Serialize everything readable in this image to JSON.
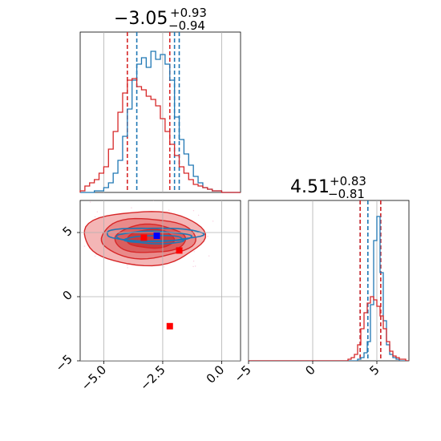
{
  "chart_data": {
    "type": "corner",
    "params": [
      "x",
      "y"
    ],
    "titles": [
      {
        "median": "−3.05",
        "plus": "+0.93",
        "minus": "−0.94"
      },
      {
        "median": "4.51",
        "plus": "+0.83",
        "minus": "−0.81"
      }
    ],
    "panels": {
      "hist_x": {
        "xlim": [
          -6.0,
          0.8
        ],
        "bin_edges": [
          -6.0,
          -5.8,
          -5.6,
          -5.4,
          -5.2,
          -5.0,
          -4.8,
          -4.6,
          -4.4,
          -4.2,
          -4.0,
          -3.8,
          -3.6,
          -3.4,
          -3.2,
          -3.0,
          -2.8,
          -2.6,
          -2.4,
          -2.2,
          -2.0,
          -1.8,
          -1.6,
          -1.4,
          -1.2,
          -1.0,
          -0.8,
          -0.6,
          -0.4,
          -0.2,
          0.0,
          0.2,
          0.4,
          0.6,
          0.8
        ],
        "series": [
          {
            "color": "#1f77b4",
            "values": [
              0,
              0,
              0,
              0.01,
              0.01,
              0.03,
              0.06,
              0.12,
              0.2,
              0.35,
              0.52,
              0.7,
              0.8,
              0.84,
              0.78,
              0.88,
              0.83,
              0.86,
              0.8,
              0.7,
              0.47,
              0.33,
              0.24,
              0.17,
              0.1,
              0.06,
              0.03,
              0.02,
              0.01,
              0.01,
              0,
              0,
              0,
              0
            ]
          },
          {
            "color": "#d62728",
            "values": [
              0.01,
              0.04,
              0.06,
              0.08,
              0.12,
              0.16,
              0.27,
              0.38,
              0.5,
              0.62,
              0.7,
              0.71,
              0.66,
              0.64,
              0.6,
              0.58,
              0.54,
              0.46,
              0.38,
              0.3,
              0.23,
              0.16,
              0.12,
              0.08,
              0.05,
              0.04,
              0.03,
              0.02,
              0.01,
              0.01,
              0,
              0,
              0,
              0
            ]
          }
        ],
        "quantiles": [
          {
            "color": "#1f77b4",
            "values": [
              -3.6,
              -2.0,
              -1.8
            ]
          },
          {
            "color": "#d62728",
            "values": [
              -4.0,
              -2.2
            ]
          }
        ]
      },
      "hist_y": {
        "xlim": [
          -5.0,
          7.5
        ],
        "bin_edges": [
          -5.0,
          -4.75,
          -4.5,
          -4.25,
          -4.0,
          -3.75,
          -3.5,
          -3.25,
          -3.0,
          -2.75,
          -2.5,
          -2.25,
          -2.0,
          -1.75,
          -1.5,
          -1.25,
          -1.0,
          -0.75,
          -0.5,
          -0.25,
          0.0,
          0.25,
          0.5,
          0.75,
          1.0,
          1.25,
          1.5,
          1.75,
          2.0,
          2.25,
          2.5,
          2.75,
          3.0,
          3.25,
          3.5,
          3.75,
          4.0,
          4.25,
          4.5,
          4.75,
          5.0,
          5.25,
          5.5,
          5.75,
          6.0,
          6.25,
          6.5,
          6.75,
          7.0,
          7.25,
          7.5
        ],
        "series": [
          {
            "color": "#1f77b4",
            "values": [
              0,
              0,
              0,
              0,
              0,
              0,
              0,
              0,
              0,
              0,
              0,
              0,
              0,
              0,
              0,
              0,
              0,
              0,
              0,
              0,
              0,
              0,
              0,
              0,
              0,
              0,
              0,
              0,
              0,
              0,
              0,
              0,
              0,
              0,
              0.01,
              0.02,
              0.05,
              0.12,
              0.35,
              0.75,
              0.9,
              0.55,
              0.25,
              0.1,
              0.04,
              0.02,
              0.01,
              0,
              0,
              0
            ]
          },
          {
            "color": "#d62728",
            "values": [
              0,
              0,
              0,
              0,
              0,
              0,
              0,
              0,
              0,
              0,
              0,
              0,
              0,
              0,
              0,
              0,
              0,
              0,
              0,
              0,
              0,
              0,
              0,
              0,
              0,
              0,
              0,
              0,
              0,
              0,
              0,
              0.01,
              0.02,
              0.04,
              0.1,
              0.2,
              0.3,
              0.36,
              0.4,
              0.38,
              0.34,
              0.28,
              0.2,
              0.12,
              0.06,
              0.03,
              0.02,
              0.01,
              0.01,
              0
            ]
          }
        ],
        "quantiles": [
          {
            "color": "#1f77b4",
            "values": [
              3.7,
              4.3,
              5.3
            ]
          },
          {
            "color": "#d62728",
            "values": [
              3.7,
              5.3
            ]
          }
        ]
      },
      "joint": {
        "xlim": [
          -6.0,
          0.8
        ],
        "ylim": [
          -5.0,
          7.5
        ],
        "red_levels": [
          {
            "cx": -3.3,
            "cy": 4.6,
            "rx": 2.55,
            "ry": 2.1,
            "fill": "#f4b6b6"
          },
          {
            "cx": -3.15,
            "cy": 4.55,
            "rx": 2.0,
            "ry": 1.55,
            "fill": "#e98a8a"
          },
          {
            "cx": -3.05,
            "cy": 4.5,
            "rx": 1.5,
            "ry": 1.1,
            "fill": "#da5e5e"
          },
          {
            "cx": -3.0,
            "cy": 4.5,
            "rx": 1.0,
            "ry": 0.72,
            "fill": "#c93c3c"
          }
        ],
        "blue_levels": [
          {
            "cx": -2.9,
            "cy": 4.85,
            "rx": 2.05,
            "ry": 0.52
          },
          {
            "cx": -2.9,
            "cy": 4.7,
            "rx": 1.6,
            "ry": 0.38
          },
          {
            "cx": -2.8,
            "cy": 4.45,
            "rx": 1.25,
            "ry": 0.32
          }
        ],
        "markers": [
          {
            "x": -2.75,
            "y": 4.75,
            "color": "#0000ff"
          },
          {
            "x": -3.3,
            "y": 4.6,
            "color": "#ff0000"
          },
          {
            "x": -1.8,
            "y": 3.6,
            "color": "#ff0000"
          },
          {
            "x": -2.2,
            "y": -2.3,
            "color": "#ff0000"
          }
        ]
      }
    },
    "ticks": {
      "joint_x": [
        "−5.0",
        "−2.5",
        "0.0"
      ],
      "joint_x_values": [
        -5.0,
        -2.5,
        0.0
      ],
      "joint_y": [
        "−5",
        "0",
        "5"
      ],
      "joint_y_values": [
        -5,
        0,
        5
      ],
      "hist_y_x": [
        "−5",
        "0",
        "5"
      ],
      "hist_y_x_values": [
        -5,
        0,
        5
      ]
    },
    "grid": true
  }
}
